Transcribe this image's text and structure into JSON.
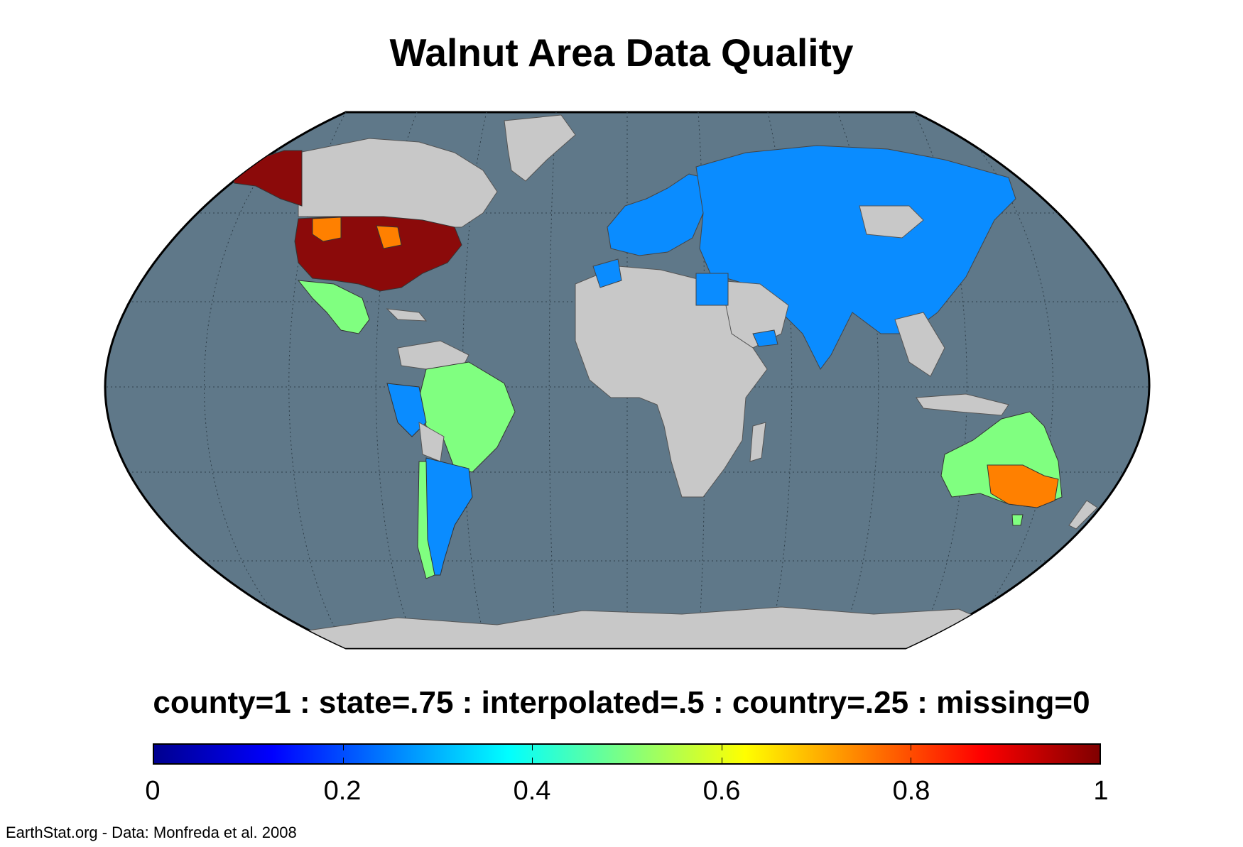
{
  "title": "Walnut Area Data Quality",
  "subtitle": "county=1 : state=.75 : interpolated=.5 : country=.25 : missing=0",
  "credit": "EarthStat.org - Data: Monfreda et al. 2008",
  "colorbar": {
    "min": 0,
    "max": 1,
    "ticks": [
      "0",
      "0.2",
      "0.4",
      "0.6",
      "0.8",
      "1"
    ],
    "colormap": "jet",
    "colors": [
      "#00008f",
      "#0000ff",
      "#0080ff",
      "#00ffff",
      "#80ff80",
      "#ffff00",
      "#ff8000",
      "#ff0000",
      "#800000"
    ]
  },
  "map": {
    "projection": "robinson",
    "ocean_color": "#5f7889",
    "missing_color": "#c8c8c8",
    "regions": [
      {
        "name": "Alaska",
        "value": 1
      },
      {
        "name": "Contiguous United States",
        "value": 1
      },
      {
        "name": "US Northern Plains states",
        "value": 0.75
      },
      {
        "name": "Mexico",
        "value": 0.5
      },
      {
        "name": "Central America",
        "value": 0.5
      },
      {
        "name": "Brazil",
        "value": 0.5
      },
      {
        "name": "Peru",
        "value": 0.25
      },
      {
        "name": "Argentina",
        "value": 0.25
      },
      {
        "name": "Chile",
        "value": 0.5
      },
      {
        "name": "Europe",
        "value": 0.25
      },
      {
        "name": "Russia",
        "value": 0.25
      },
      {
        "name": "China",
        "value": 0.25
      },
      {
        "name": "Central Asia",
        "value": 0.25
      },
      {
        "name": "Iran",
        "value": 0.25
      },
      {
        "name": "India",
        "value": 0.25
      },
      {
        "name": "Egypt",
        "value": 0.25
      },
      {
        "name": "Morocco",
        "value": 0.25
      },
      {
        "name": "Yemen",
        "value": 0.25
      },
      {
        "name": "Australia",
        "value": 0.5
      },
      {
        "name": "South-eastern Australia",
        "value": 0.75
      },
      {
        "name": "Tasmania",
        "value": 0.5
      },
      {
        "name": "Canada",
        "value": 0
      },
      {
        "name": "Greenland",
        "value": 0
      },
      {
        "name": "Africa",
        "value": 0
      },
      {
        "name": "Mongolia",
        "value": 0
      },
      {
        "name": "Southeast Asia",
        "value": 0
      },
      {
        "name": "Antarctica",
        "value": 0
      }
    ]
  }
}
